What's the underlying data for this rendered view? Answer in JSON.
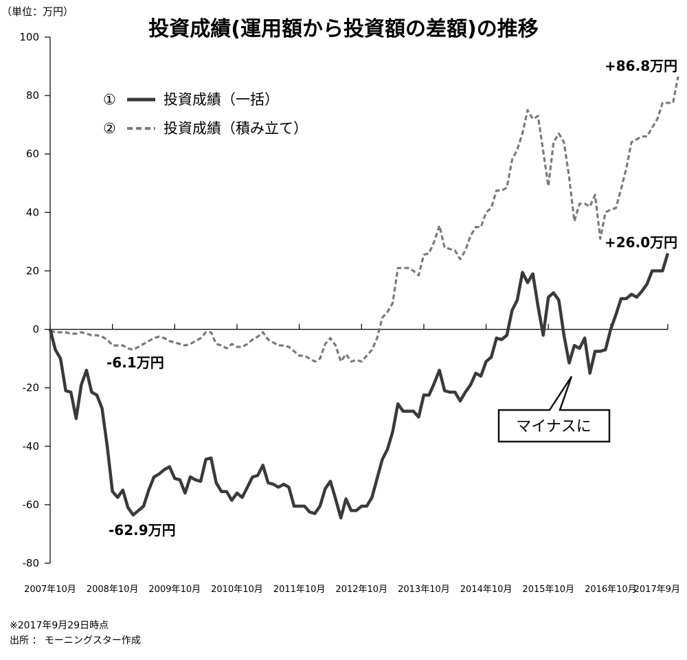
{
  "chart_data": {
    "type": "line",
    "title": "投資成績(運用額から投資額の差額)の推移",
    "unit_label": "（単位：万円）",
    "ylim": [
      -80,
      100
    ],
    "yticks": [
      100,
      80,
      60,
      40,
      20,
      0,
      -20,
      -40,
      -60,
      -80
    ],
    "x_tick_labels": [
      "2007年10月",
      "2008年10月",
      "2009年10月",
      "2010年10月",
      "2011年10月",
      "2012年10月",
      "2013年10月",
      "2014年10月",
      "2015年10月",
      "2016年10月",
      "2017年9月"
    ],
    "x_ticks_at": [
      0,
      12,
      24,
      36,
      48,
      60,
      72,
      84,
      96,
      108,
      119
    ],
    "x_range": [
      0,
      119
    ],
    "grid": false,
    "legend_position": "top-left",
    "series": [
      {
        "name": "投資成績（一括）",
        "legend_marker": "①",
        "style": "solid",
        "color": "#3a3a3a",
        "values": [
          0,
          -7,
          -10,
          -21,
          -21.5,
          -30.5,
          -19,
          -14,
          -21.5,
          -22.5,
          -27,
          -40,
          -55.5,
          -57.5,
          -55,
          -61,
          -63.5,
          -62,
          -60.5,
          -55,
          -50.5,
          -49.5,
          -48,
          -47,
          -51,
          -51.5,
          -56,
          -50.5,
          -51.5,
          -52,
          -44.5,
          -44,
          -52.5,
          -55.5,
          -55.5,
          -58.5,
          -56,
          -57.5,
          -54,
          -50.5,
          -50,
          -46.5,
          -52.5,
          -53,
          -54,
          -53,
          -54,
          -60.5,
          -60.5,
          -60.5,
          -62.5,
          -63,
          -60.5,
          -54.5,
          -52,
          -58,
          -64.5,
          -58,
          -62,
          -62,
          -60.5,
          -60.5,
          -57.5,
          -51,
          -44.5,
          -41,
          -35,
          -25.5,
          -28,
          -28,
          -28,
          -30,
          -22.5,
          -22.5,
          -18.5,
          -14,
          -21,
          -21.5,
          -21.5,
          -24.5,
          -21.5,
          -19,
          -15,
          -16,
          -11,
          -9.5,
          -3,
          -3.5,
          -2,
          6.5,
          10,
          19.5,
          16,
          19,
          8,
          -2,
          11,
          12.5,
          10,
          -2,
          -11.5,
          -5.5,
          -6.5,
          -3,
          -15,
          -7.5,
          -7.5,
          -7,
          0,
          5,
          10.5,
          10.5,
          12,
          11,
          13,
          15.5,
          20,
          20,
          20,
          26
        ]
      },
      {
        "name": "投資成績（積み立て）",
        "legend_marker": "②",
        "style": "dashed",
        "color": "#7a7a7a",
        "values": [
          -0.5,
          -1,
          -1,
          -1,
          -1.5,
          -1.5,
          -1,
          -1.5,
          -2,
          -2,
          -2.5,
          -3.5,
          -5.5,
          -5.5,
          -5.5,
          -6.5,
          -7,
          -6,
          -5,
          -4,
          -3,
          -2.5,
          -3,
          -4,
          -4.5,
          -5,
          -5.5,
          -5,
          -4,
          -3,
          -1,
          -1,
          -5,
          -5.5,
          -6.5,
          -5,
          -6,
          -6,
          -5,
          -3.5,
          -2.5,
          -1,
          -3.5,
          -4.5,
          -5.5,
          -5.5,
          -6,
          -7.5,
          -9,
          -9,
          -10,
          -11,
          -10,
          -5,
          -3,
          -5.5,
          -11,
          -8.5,
          -11,
          -10.5,
          -11,
          -9,
          -7,
          -3,
          4,
          6,
          9,
          21,
          21,
          21,
          20,
          18.5,
          25.5,
          26,
          30,
          35.5,
          28,
          27.5,
          27,
          24,
          27,
          32,
          35,
          35,
          40,
          41.5,
          47.5,
          47.5,
          48.5,
          58,
          61.5,
          67,
          75,
          72,
          73,
          61,
          49,
          64,
          67,
          64,
          52,
          37,
          43,
          43,
          42,
          46,
          31,
          40,
          41,
          41.5,
          48,
          55,
          64,
          65,
          66,
          66,
          69,
          72,
          77.5,
          77.5,
          77.5,
          86.5
        ]
      }
    ],
    "annotations": [
      {
        "text": "-6.1万円"
      },
      {
        "text": "-62.9万円"
      },
      {
        "text": "+26.0万円"
      },
      {
        "text": "+86.8万円"
      },
      {
        "text": "マイナスに"
      }
    ],
    "notes": [
      "※2017年9月29日時点",
      "出所 ： モーニングスター作成"
    ]
  }
}
